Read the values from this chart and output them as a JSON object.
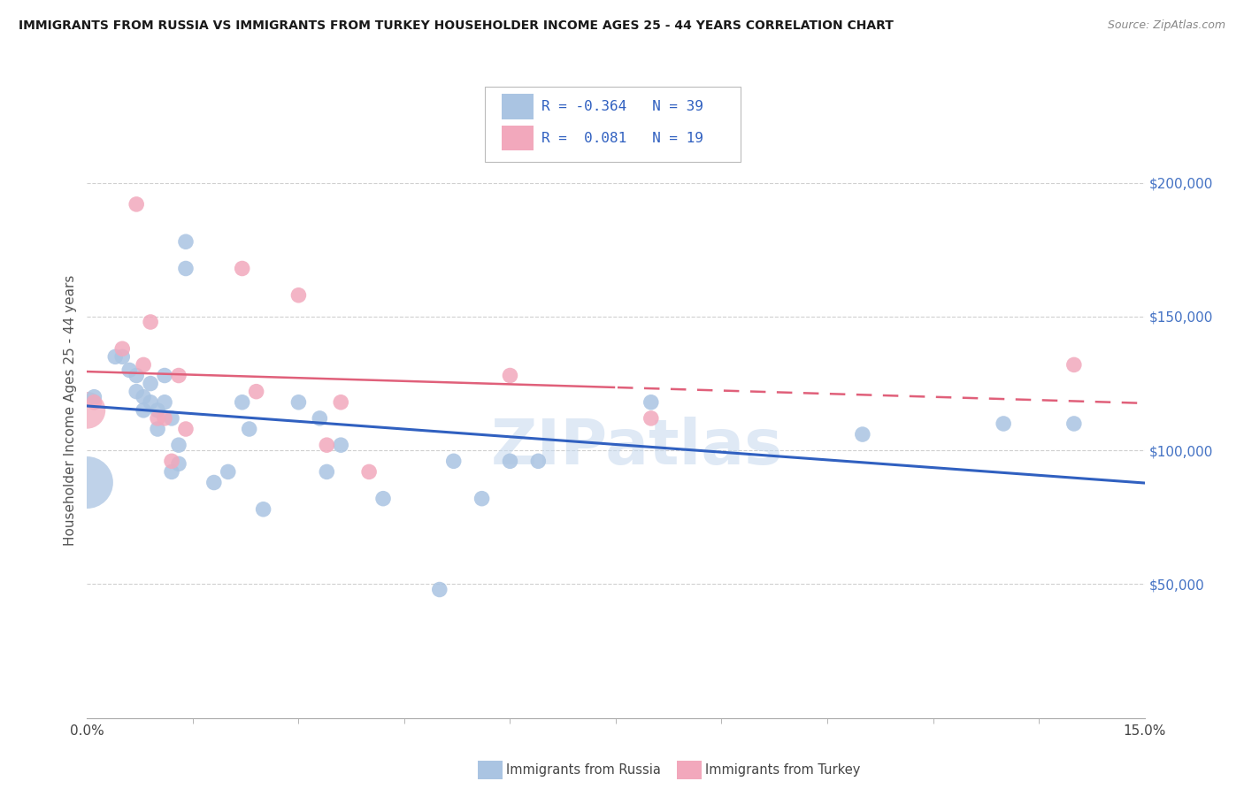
{
  "title": "IMMIGRANTS FROM RUSSIA VS IMMIGRANTS FROM TURKEY HOUSEHOLDER INCOME AGES 25 - 44 YEARS CORRELATION CHART",
  "source": "Source: ZipAtlas.com",
  "ylabel": "Householder Income Ages 25 - 44 years",
  "ytick_labels": [
    "$50,000",
    "$100,000",
    "$150,000",
    "$200,000"
  ],
  "ytick_values": [
    50000,
    100000,
    150000,
    200000
  ],
  "xlim": [
    0.0,
    0.15
  ],
  "ylim": [
    0,
    230000
  ],
  "legend_russia_R": "-0.364",
  "legend_russia_N": "39",
  "legend_turkey_R": "0.081",
  "legend_turkey_N": "19",
  "russia_color": "#aac4e2",
  "turkey_color": "#f2a8bc",
  "russia_line_color": "#3060c0",
  "turkey_line_color": "#e0607a",
  "watermark": "ZIPatlas",
  "russia_x": [
    0.001,
    0.004,
    0.005,
    0.006,
    0.007,
    0.007,
    0.008,
    0.008,
    0.009,
    0.009,
    0.01,
    0.01,
    0.011,
    0.011,
    0.012,
    0.012,
    0.013,
    0.013,
    0.014,
    0.014,
    0.018,
    0.02,
    0.022,
    0.023,
    0.025,
    0.03,
    0.033,
    0.034,
    0.036,
    0.042,
    0.05,
    0.052,
    0.056,
    0.06,
    0.064,
    0.08,
    0.11,
    0.13,
    0.14
  ],
  "russia_y": [
    120000,
    135000,
    135000,
    130000,
    128000,
    122000,
    120000,
    115000,
    125000,
    118000,
    115000,
    108000,
    128000,
    118000,
    92000,
    112000,
    102000,
    95000,
    178000,
    168000,
    88000,
    92000,
    118000,
    108000,
    78000,
    118000,
    112000,
    92000,
    102000,
    82000,
    48000,
    96000,
    82000,
    96000,
    96000,
    118000,
    106000,
    110000,
    110000
  ],
  "russia_sizes": [
    120,
    120,
    120,
    120,
    120,
    120,
    120,
    120,
    120,
    120,
    120,
    120,
    120,
    120,
    120,
    120,
    120,
    120,
    120,
    120,
    120,
    120,
    120,
    120,
    120,
    120,
    120,
    120,
    120,
    120,
    120,
    120,
    120,
    120,
    120,
    120,
    120,
    120,
    120
  ],
  "turkey_x": [
    0.001,
    0.005,
    0.007,
    0.008,
    0.009,
    0.01,
    0.011,
    0.012,
    0.013,
    0.014,
    0.022,
    0.024,
    0.03,
    0.034,
    0.036,
    0.04,
    0.06,
    0.08,
    0.14
  ],
  "turkey_y": [
    118000,
    138000,
    192000,
    132000,
    148000,
    112000,
    112000,
    96000,
    128000,
    108000,
    168000,
    122000,
    158000,
    102000,
    118000,
    92000,
    128000,
    112000,
    132000
  ],
  "left_large_russia_x": [
    0.0
  ],
  "left_large_russia_y": [
    88000
  ],
  "left_large_turkey_x": [
    0.0
  ],
  "left_large_turkey_y": [
    115000
  ],
  "grid_color": "#d0d0d0",
  "title_color": "#1a1a1a",
  "source_color": "#888888",
  "ylabel_color": "#555555",
  "ytick_color": "#4472c4",
  "xtick_color": "#444444"
}
